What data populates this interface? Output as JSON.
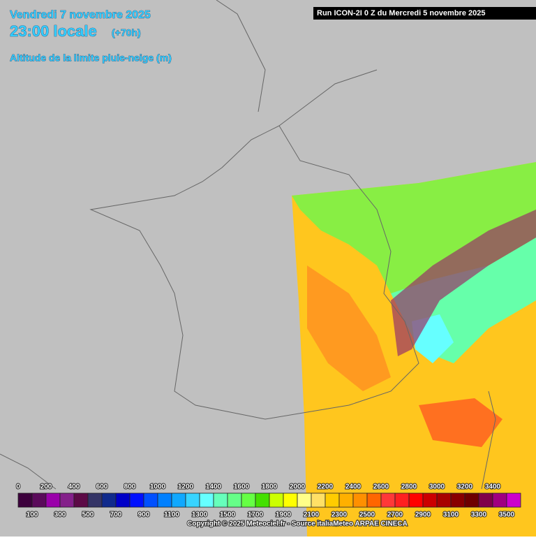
{
  "header": {
    "date": "Vendredi 7 novembre 2025",
    "time": "23:00 locale",
    "lead": "(+70h)",
    "subtitle": "Altitude de la limite pluie-neige (m)",
    "run": "Run ICON-2I 0 Z du Mercredi 5 novembre 2025"
  },
  "legend": {
    "levels": [
      0,
      100,
      200,
      300,
      400,
      500,
      600,
      700,
      800,
      900,
      1000,
      1100,
      1200,
      1300,
      1400,
      1500,
      1600,
      1700,
      1800,
      1900,
      2000,
      2100,
      2200,
      2300,
      2400,
      2500,
      2600,
      2700,
      2800,
      2900,
      3000,
      3100,
      3200,
      3300,
      3400,
      3500
    ],
    "colors": [
      "#3c003c",
      "#5a0a5a",
      "#9a00aa",
      "#84208a",
      "#5c0a46",
      "#343466",
      "#102a8c",
      "#0000c8",
      "#0010ff",
      "#0050ff",
      "#0080ff",
      "#10a8ff",
      "#38d4ff",
      "#66ffff",
      "#66ffbb",
      "#66ff88",
      "#66ff44",
      "#44e000",
      "#ccff00",
      "#ffff00",
      "#ffff88",
      "#ffe066",
      "#ffcc00",
      "#ffb000",
      "#ff9000",
      "#ff6600",
      "#ff3838",
      "#ff2020",
      "#ff0000",
      "#cc0000",
      "#a80000",
      "#880000",
      "#6e0000",
      "#80004a",
      "#a00080",
      "#cc00cc"
    ]
  },
  "footer": {
    "copyright": "Copyright © 2025 Meteociel.fr - Source italiaMeteo ARPAE CINECA"
  }
}
